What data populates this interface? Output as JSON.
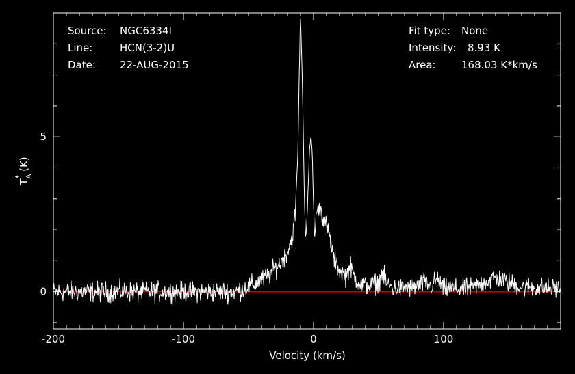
{
  "info_left": [
    {
      "key": "Source:",
      "value": "NGC6334I"
    },
    {
      "key": "Line:",
      "value": "HCN(3-2)U"
    },
    {
      "key": "Date:",
      "value": "22-AUG-2015"
    }
  ],
  "info_right": [
    {
      "key": "Fit type:",
      "value": "None"
    },
    {
      "key": "Intensity:",
      "value": "8.93 K"
    },
    {
      "key": "Area:",
      "value": "168.03 K*km/s"
    }
  ],
  "chart_data": {
    "type": "line",
    "xlabel": "Velocity (km/s)",
    "ylabel": "T*A (K)",
    "ylabel_main": "T",
    "ylabel_sup": "*",
    "ylabel_sub": "A",
    "ylabel_unit": " (K)",
    "xlim": [
      -200,
      190
    ],
    "ylim": [
      -1.2,
      9.0
    ],
    "xticks": [
      -200,
      -100,
      0,
      100
    ],
    "xtick_labels": [
      "-200",
      "-100",
      "0",
      "100"
    ],
    "yticks": [
      0,
      5
    ],
    "ytick_labels": [
      "0",
      "5"
    ],
    "baseline_y": 0,
    "colors": {
      "spectrum": "#ffffff",
      "baseline": "#e00000",
      "axes": "#ffffff"
    },
    "profile_points": [
      [
        -200,
        0.0
      ],
      [
        -60,
        0.0
      ],
      [
        -45,
        0.25
      ],
      [
        -35,
        0.5
      ],
      [
        -25,
        0.95
      ],
      [
        -20,
        1.3
      ],
      [
        -16,
        1.8
      ],
      [
        -14,
        2.6
      ],
      [
        -12,
        4.5
      ],
      [
        -11,
        7.0
      ],
      [
        -10,
        8.93
      ],
      [
        -9,
        7.5
      ],
      [
        -8,
        5.5
      ],
      [
        -7,
        3.0
      ],
      [
        -6,
        1.7
      ],
      [
        -5,
        2.4
      ],
      [
        -4,
        3.5
      ],
      [
        -3,
        4.6
      ],
      [
        -2,
        5.05
      ],
      [
        -1,
        4.5
      ],
      [
        0,
        2.8
      ],
      [
        1,
        1.7
      ],
      [
        2,
        2.5
      ],
      [
        4,
        2.8
      ],
      [
        6,
        2.6
      ],
      [
        8,
        2.3
      ],
      [
        10,
        2.1
      ],
      [
        12,
        1.85
      ],
      [
        14,
        1.4
      ],
      [
        16,
        1.0
      ],
      [
        20,
        0.7
      ],
      [
        25,
        0.5
      ],
      [
        28,
        0.85
      ],
      [
        32,
        0.4
      ],
      [
        38,
        0.2
      ],
      [
        45,
        0.2
      ],
      [
        50,
        0.3
      ],
      [
        53,
        0.65
      ],
      [
        56,
        0.25
      ],
      [
        62,
        0.1
      ],
      [
        80,
        0.15
      ],
      [
        85,
        0.3
      ],
      [
        90,
        0.15
      ],
      [
        95,
        0.4
      ],
      [
        100,
        0.1
      ],
      [
        120,
        0.1
      ],
      [
        140,
        0.45
      ],
      [
        150,
        0.3
      ],
      [
        160,
        0.15
      ],
      [
        190,
        0.1
      ]
    ],
    "noise_amplitude": 0.32
  }
}
